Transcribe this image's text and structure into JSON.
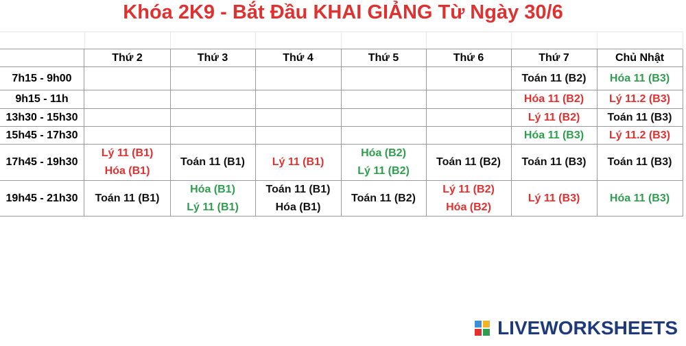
{
  "title": "Khóa 2K9 - Bắt Đầu KHAI GIẢNG Từ Ngày 30/6",
  "table": {
    "days": [
      "Thứ 2",
      "Thứ 3",
      "Thứ 4",
      "Thứ 5",
      "Thứ 6",
      "Thứ 7",
      "Chủ Nhật"
    ],
    "rows": [
      {
        "time": "7h15 - 9h00",
        "cells": [
          [],
          [],
          [],
          [],
          [],
          [
            {
              "text": "Toán 11 (B2)",
              "color": "#111111"
            }
          ],
          [
            {
              "text": "Hóa 11 (B3)",
              "color": "#2e9e4e"
            }
          ]
        ]
      },
      {
        "time": "9h15 - 11h",
        "cells": [
          [],
          [],
          [],
          [],
          [],
          [
            {
              "text": "Hóa 11 (B2)",
              "color": "#e03131"
            }
          ],
          [
            {
              "text": "Lý 11.2 (B3)",
              "color": "#e03131"
            }
          ]
        ]
      },
      {
        "time": "13h30 - 15h30",
        "cells": [
          [],
          [],
          [],
          [],
          [],
          [
            {
              "text": "Lý 11 (B2)",
              "color": "#e03131"
            }
          ],
          [
            {
              "text": "Toán 11 (B3)",
              "color": "#111111"
            }
          ]
        ]
      },
      {
        "time": "15h45 - 17h30",
        "cells": [
          [],
          [],
          [],
          [],
          [],
          [
            {
              "text": "Hóa 11 (B3)",
              "color": "#2e9e4e"
            }
          ],
          [
            {
              "text": "Lý 11.2 (B3)",
              "color": "#e03131"
            }
          ]
        ]
      },
      {
        "time": "17h45 - 19h30",
        "cells": [
          [
            {
              "text": "Lý 11 (B1)",
              "color": "#e03131"
            },
            {
              "text": "Hóa (B1)",
              "color": "#e03131"
            }
          ],
          [
            {
              "text": "Toán 11 (B1)",
              "color": "#111111"
            }
          ],
          [
            {
              "text": "Lý 11 (B1)",
              "color": "#e03131"
            }
          ],
          [
            {
              "text": "Hóa (B2)",
              "color": "#2e9e4e"
            },
            {
              "text": "Lý 11 (B2)",
              "color": "#2e9e4e"
            }
          ],
          [
            {
              "text": "Toán 11 (B2)",
              "color": "#111111"
            }
          ],
          [
            {
              "text": "Toán 11 (B3)",
              "color": "#111111"
            }
          ],
          [
            {
              "text": "Toán 11 (B3)",
              "color": "#111111"
            }
          ]
        ]
      },
      {
        "time": "19h45 - 21h30",
        "cells": [
          [
            {
              "text": "Toán 11 (B1)",
              "color": "#111111"
            }
          ],
          [
            {
              "text": "Hóa (B1)",
              "color": "#2e9e4e"
            },
            {
              "text": "Lý 11 (B1)",
              "color": "#2e9e4e"
            }
          ],
          [
            {
              "text": "Toán 11 (B1)",
              "color": "#111111"
            },
            {
              "text": "Hóa (B1)",
              "color": "#111111"
            }
          ],
          [
            {
              "text": "Toán 11 (B2)",
              "color": "#111111"
            }
          ],
          [
            {
              "text": "Lý 11 (B2)",
              "color": "#e03131"
            },
            {
              "text": "Hóa (B2)",
              "color": "#e03131"
            }
          ],
          [
            {
              "text": "Lý 11 (B3)",
              "color": "#e03131"
            }
          ],
          [
            {
              "text": "Hóa 11 (B3)",
              "color": "#2e9e4e"
            }
          ]
        ]
      }
    ]
  },
  "logo": "LIVEWORKSHEETS"
}
